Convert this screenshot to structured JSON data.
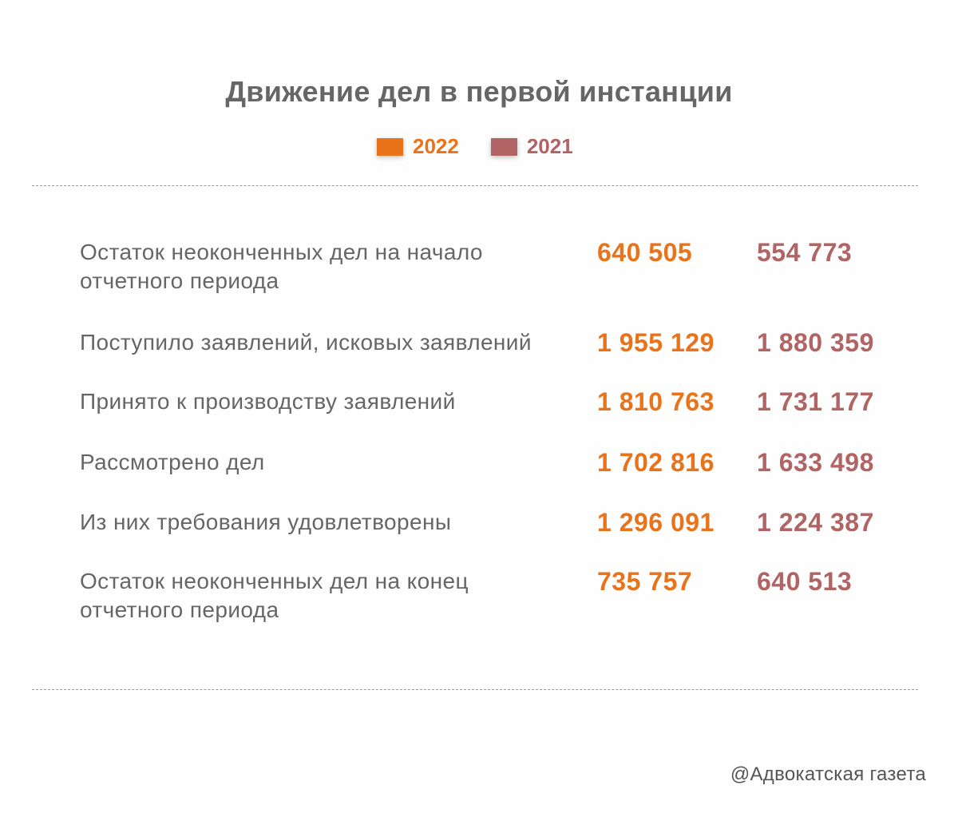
{
  "title": "Движение дел в первой инстанции",
  "colors": {
    "y2022": "#e8731a",
    "y2021": "#b06464",
    "label": "#666666"
  },
  "legend": [
    {
      "label": "2022",
      "color": "#e8731a"
    },
    {
      "label": "2021",
      "color": "#b06464"
    }
  ],
  "chart_data": {
    "type": "table",
    "title": "Движение дел в первой инстанции",
    "columns": [
      "2022",
      "2021"
    ],
    "rows": [
      {
        "label": "Остаток неоконченных  дел на начало отчетного периода",
        "v2022": "640 505",
        "v2021": "554 773"
      },
      {
        "label": "Поступило заявлений, исковых заявлений",
        "v2022": "1 955 129",
        "v2021": "1 880 359"
      },
      {
        "label": "Принято к производству заявлений",
        "v2022": "1 810 763",
        "v2021": "1 731 177"
      },
      {
        "label": "Рассмотрено дел",
        "v2022": "1 702 816",
        "v2021": "1 633 498"
      },
      {
        "label": "Из них требования удовлетворены",
        "v2022": "1 296 091",
        "v2021": "1 224 387"
      },
      {
        "label": "Остаток неоконченных дел на конец отчетного периода",
        "v2022": "735 757",
        "v2021": "640 513"
      }
    ]
  },
  "credit": "@Адвокатская газета"
}
